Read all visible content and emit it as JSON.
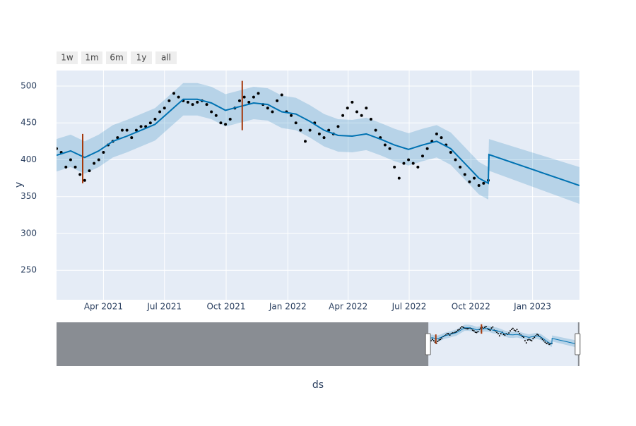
{
  "chart_data": {
    "type": "forecast",
    "xlabel": "ds",
    "ylabel": "y",
    "range_buttons": [
      "1w",
      "1m",
      "6m",
      "1y",
      "all"
    ],
    "xlim": [
      "2021-01-21",
      "2023-03-12"
    ],
    "ylim": [
      210,
      521
    ],
    "yticks": [
      250,
      300,
      350,
      400,
      450,
      500
    ],
    "xticks": [
      {
        "value": "2021-04-01",
        "label": "Apr 2021"
      },
      {
        "value": "2021-07-01",
        "label": "Jul 2021"
      },
      {
        "value": "2021-10-01",
        "label": "Oct 2021"
      },
      {
        "value": "2022-01-01",
        "label": "Jan 2022"
      },
      {
        "value": "2022-04-01",
        "label": "Apr 2022"
      },
      {
        "value": "2022-07-01",
        "label": "Jul 2022"
      },
      {
        "value": "2022-10-01",
        "label": "Oct 2022"
      },
      {
        "value": "2023-01-01",
        "label": "Jan 2023"
      }
    ],
    "grid": true,
    "slider_xlim": [
      "2015-10-01",
      "2023-03-20"
    ],
    "actual": {
      "color": "#000000",
      "x": [
        "2021-01-21",
        "2021-01-28",
        "2021-02-04",
        "2021-02-11",
        "2021-02-18",
        "2021-02-25",
        "2021-03-04",
        "2021-03-11",
        "2021-03-18",
        "2021-03-25",
        "2021-04-01",
        "2021-04-08",
        "2021-04-15",
        "2021-04-22",
        "2021-04-29",
        "2021-05-06",
        "2021-05-13",
        "2021-05-20",
        "2021-05-27",
        "2021-06-03",
        "2021-06-10",
        "2021-06-17",
        "2021-06-24",
        "2021-07-01",
        "2021-07-08",
        "2021-07-15",
        "2021-07-22",
        "2021-07-29",
        "2021-08-05",
        "2021-08-12",
        "2021-08-19",
        "2021-08-26",
        "2021-09-02",
        "2021-09-09",
        "2021-09-16",
        "2021-09-23",
        "2021-09-30",
        "2021-10-07",
        "2021-10-14",
        "2021-10-21",
        "2021-10-28",
        "2021-11-04",
        "2021-11-11",
        "2021-11-18",
        "2021-11-25",
        "2021-12-02",
        "2021-12-09",
        "2021-12-16",
        "2021-12-23",
        "2021-12-30",
        "2022-01-06",
        "2022-01-13",
        "2022-01-20",
        "2022-01-27",
        "2022-02-03",
        "2022-02-10",
        "2022-02-17",
        "2022-02-24",
        "2022-03-03",
        "2022-03-10",
        "2022-03-17",
        "2022-03-24",
        "2022-03-31",
        "2022-04-07",
        "2022-04-14",
        "2022-04-21",
        "2022-04-28",
        "2022-05-05",
        "2022-05-12",
        "2022-05-19",
        "2022-05-26",
        "2022-06-02",
        "2022-06-09",
        "2022-06-16",
        "2022-06-23",
        "2022-06-30",
        "2022-07-07",
        "2022-07-14",
        "2022-07-21",
        "2022-07-28",
        "2022-08-04",
        "2022-08-11",
        "2022-08-18",
        "2022-08-25",
        "2022-09-01",
        "2022-09-08",
        "2022-09-15",
        "2022-09-22",
        "2022-09-29",
        "2022-10-06",
        "2022-10-13",
        "2022-10-20",
        "2022-10-27"
      ],
      "values": [
        415,
        410,
        390,
        400,
        390,
        380,
        372,
        385,
        395,
        400,
        410,
        420,
        425,
        430,
        440,
        440,
        430,
        440,
        445,
        445,
        450,
        455,
        465,
        470,
        480,
        490,
        485,
        480,
        478,
        475,
        478,
        480,
        475,
        465,
        460,
        450,
        448,
        455,
        470,
        480,
        485,
        478,
        485,
        490,
        475,
        470,
        465,
        480,
        488,
        465,
        460,
        450,
        440,
        425,
        440,
        450,
        435,
        430,
        440,
        435,
        445,
        460,
        470,
        478,
        465,
        460,
        470,
        455,
        440,
        430,
        420,
        415,
        390,
        375,
        395,
        400,
        395,
        390,
        405,
        415,
        425,
        435,
        430,
        420,
        410,
        400,
        390,
        380,
        370,
        375,
        365,
        368,
        372
      ]
    },
    "forecast": {
      "color": "#0072b2",
      "x": [
        "2021-01-21",
        "2021-02-11",
        "2021-03-04",
        "2021-03-25",
        "2021-04-15",
        "2021-05-06",
        "2021-05-27",
        "2021-06-17",
        "2021-07-08",
        "2021-07-29",
        "2021-08-19",
        "2021-09-09",
        "2021-09-30",
        "2021-10-21",
        "2021-11-11",
        "2021-12-02",
        "2021-12-23",
        "2022-01-13",
        "2022-02-03",
        "2022-02-24",
        "2022-03-17",
        "2022-04-07",
        "2022-04-28",
        "2022-05-19",
        "2022-06-09",
        "2022-06-30",
        "2022-07-21",
        "2022-08-11",
        "2022-09-01",
        "2022-09-22",
        "2022-10-13",
        "2022-10-27",
        "2022-10-28",
        "2023-03-12"
      ],
      "yhat": [
        406,
        412,
        403,
        412,
        425,
        432,
        440,
        448,
        465,
        482,
        482,
        477,
        467,
        472,
        477,
        475,
        465,
        462,
        452,
        440,
        433,
        432,
        435,
        428,
        420,
        414,
        420,
        425,
        415,
        395,
        375,
        368,
        407,
        365
      ],
      "yhat_lower": [
        384,
        390,
        381,
        390,
        403,
        410,
        418,
        426,
        443,
        460,
        460,
        455,
        445,
        450,
        455,
        453,
        443,
        440,
        430,
        418,
        411,
        410,
        413,
        406,
        398,
        392,
        398,
        403,
        393,
        373,
        353,
        346,
        385,
        340
      ],
      "yhat_upper": [
        428,
        434,
        425,
        434,
        447,
        454,
        462,
        470,
        487,
        504,
        504,
        499,
        489,
        494,
        499,
        497,
        487,
        484,
        474,
        462,
        455,
        454,
        457,
        450,
        442,
        436,
        442,
        447,
        437,
        417,
        397,
        390,
        428,
        390
      ]
    },
    "changepoints": {
      "color": "#a5390c",
      "x": [
        "2021-03-01",
        "2021-10-25"
      ],
      "low": [
        368,
        440
      ],
      "high": [
        435,
        507
      ]
    }
  }
}
